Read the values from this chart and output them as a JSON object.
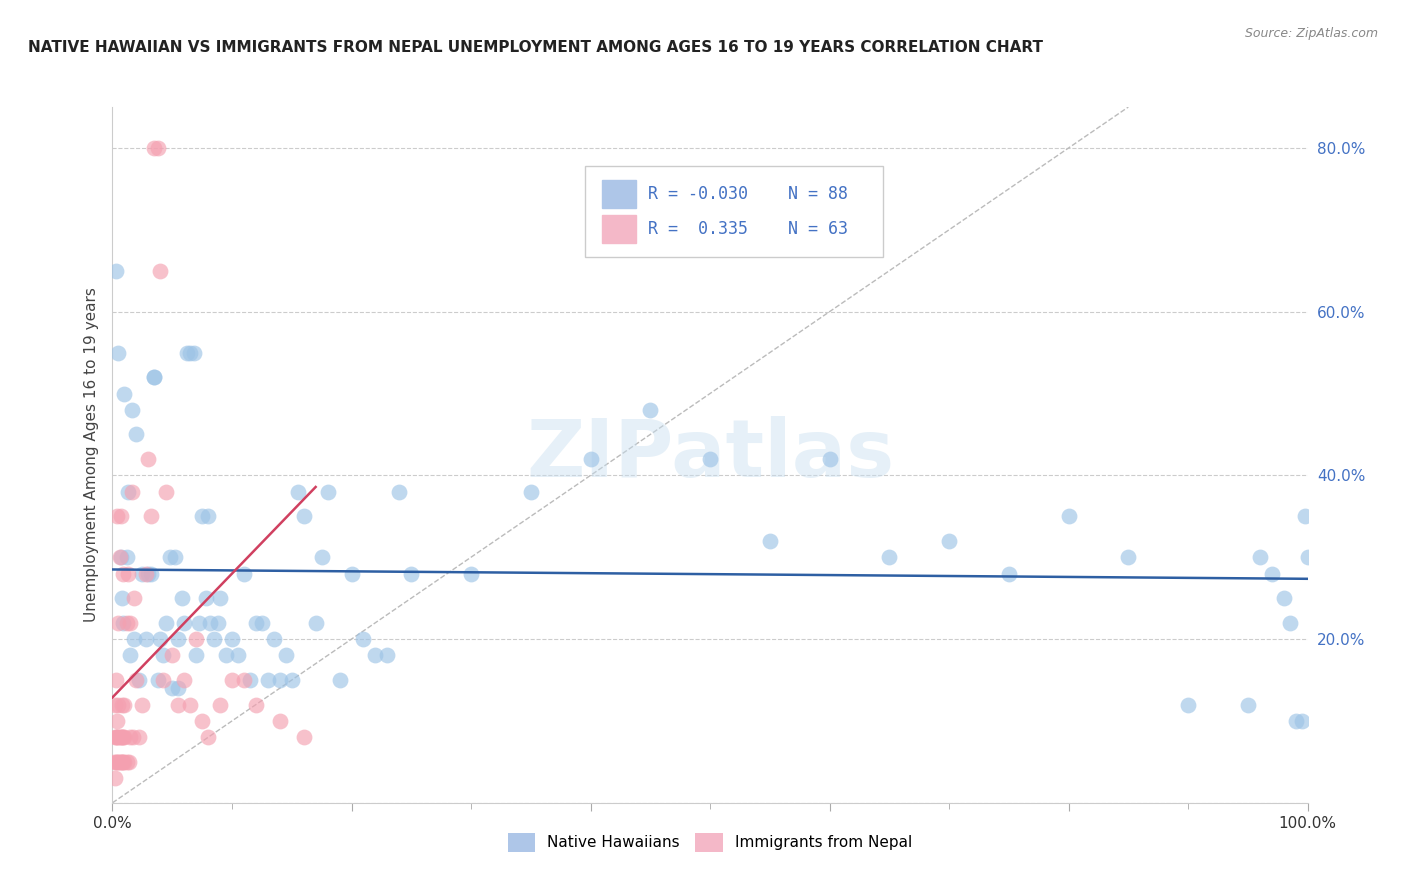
{
  "title": "NATIVE HAWAIIAN VS IMMIGRANTS FROM NEPAL UNEMPLOYMENT AMONG AGES 16 TO 19 YEARS CORRELATION CHART",
  "source": "Source: ZipAtlas.com",
  "ylabel": "Unemployment Among Ages 16 to 19 years",
  "r_blue": -0.03,
  "n_blue": 88,
  "r_pink": 0.335,
  "n_pink": 63,
  "blue_color": "#9dc3e6",
  "pink_color": "#f4a0b0",
  "trendline_blue_color": "#2e5fa3",
  "trendline_pink_color": "#d04060",
  "watermark": "ZIPatlas",
  "blue_x": [
    0.003,
    0.005,
    0.007,
    0.008,
    0.009,
    0.01,
    0.012,
    0.013,
    0.015,
    0.016,
    0.018,
    0.02,
    0.022,
    0.025,
    0.028,
    0.03,
    0.032,
    0.035,
    0.035,
    0.038,
    0.04,
    0.042,
    0.045,
    0.048,
    0.05,
    0.052,
    0.055,
    0.055,
    0.058,
    0.06,
    0.062,
    0.065,
    0.068,
    0.07,
    0.072,
    0.075,
    0.078,
    0.08,
    0.082,
    0.085,
    0.088,
    0.09,
    0.095,
    0.1,
    0.105,
    0.11,
    0.115,
    0.12,
    0.125,
    0.13,
    0.135,
    0.14,
    0.145,
    0.15,
    0.155,
    0.16,
    0.17,
    0.175,
    0.18,
    0.19,
    0.2,
    0.21,
    0.22,
    0.23,
    0.24,
    0.25,
    0.3,
    0.35,
    0.4,
    0.45,
    0.5,
    0.55,
    0.6,
    0.65,
    0.7,
    0.75,
    0.8,
    0.85,
    0.9,
    0.95,
    0.96,
    0.97,
    0.98,
    0.985,
    0.99,
    0.995,
    0.998,
    1.0
  ],
  "blue_y": [
    0.65,
    0.55,
    0.3,
    0.25,
    0.22,
    0.5,
    0.3,
    0.38,
    0.18,
    0.48,
    0.2,
    0.45,
    0.15,
    0.28,
    0.2,
    0.28,
    0.28,
    0.52,
    0.52,
    0.15,
    0.2,
    0.18,
    0.22,
    0.3,
    0.14,
    0.3,
    0.14,
    0.2,
    0.25,
    0.22,
    0.55,
    0.55,
    0.55,
    0.18,
    0.22,
    0.35,
    0.25,
    0.35,
    0.22,
    0.2,
    0.22,
    0.25,
    0.18,
    0.2,
    0.18,
    0.28,
    0.15,
    0.22,
    0.22,
    0.15,
    0.2,
    0.15,
    0.18,
    0.15,
    0.38,
    0.35,
    0.22,
    0.3,
    0.38,
    0.15,
    0.28,
    0.2,
    0.18,
    0.18,
    0.38,
    0.28,
    0.28,
    0.38,
    0.42,
    0.48,
    0.42,
    0.32,
    0.42,
    0.3,
    0.32,
    0.28,
    0.35,
    0.3,
    0.12,
    0.12,
    0.3,
    0.28,
    0.25,
    0.22,
    0.1,
    0.1,
    0.35,
    0.3
  ],
  "pink_x": [
    0.001,
    0.002,
    0.002,
    0.002,
    0.003,
    0.003,
    0.003,
    0.004,
    0.004,
    0.004,
    0.004,
    0.005,
    0.005,
    0.005,
    0.005,
    0.006,
    0.006,
    0.006,
    0.007,
    0.007,
    0.007,
    0.008,
    0.008,
    0.008,
    0.009,
    0.009,
    0.009,
    0.01,
    0.01,
    0.01,
    0.012,
    0.012,
    0.013,
    0.014,
    0.015,
    0.015,
    0.016,
    0.017,
    0.018,
    0.02,
    0.022,
    0.025,
    0.028,
    0.03,
    0.032,
    0.035,
    0.038,
    0.04,
    0.042,
    0.045,
    0.05,
    0.055,
    0.06,
    0.065,
    0.07,
    0.075,
    0.08,
    0.09,
    0.1,
    0.11,
    0.12,
    0.14,
    0.16
  ],
  "pink_y": [
    0.05,
    0.03,
    0.08,
    0.12,
    0.05,
    0.08,
    0.15,
    0.05,
    0.08,
    0.1,
    0.35,
    0.05,
    0.08,
    0.12,
    0.22,
    0.05,
    0.08,
    0.3,
    0.05,
    0.08,
    0.35,
    0.05,
    0.08,
    0.12,
    0.05,
    0.08,
    0.28,
    0.05,
    0.08,
    0.12,
    0.05,
    0.22,
    0.28,
    0.05,
    0.08,
    0.22,
    0.38,
    0.08,
    0.25,
    0.15,
    0.08,
    0.12,
    0.28,
    0.42,
    0.35,
    0.8,
    0.8,
    0.65,
    0.15,
    0.38,
    0.18,
    0.12,
    0.15,
    0.12,
    0.2,
    0.1,
    0.08,
    0.12,
    0.15,
    0.15,
    0.12,
    0.1,
    0.08
  ]
}
